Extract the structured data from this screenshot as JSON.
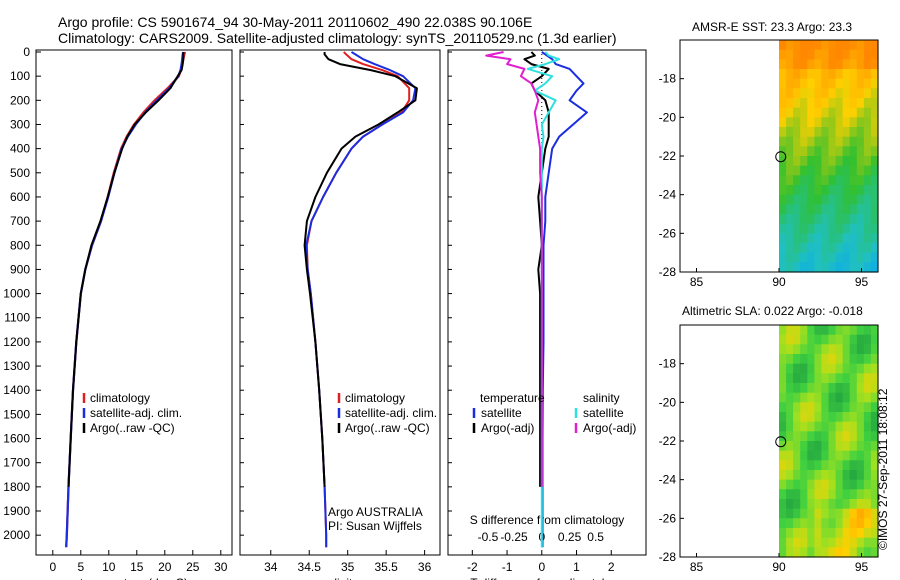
{
  "header": {
    "line1": "Argo profile: CS 5901674_94 30-May-2011 20110602_490 22.038S 90.106E",
    "line2": "Climatology: CARS2009. Satellite-adjusted climatology: synTS_20110529.nc (1.3d earlier)"
  },
  "timestamp": "©IMOS 27-Sep-2011 18:08:12",
  "colors": {
    "climatology": "#e02020",
    "satellite": "#1a2ee0",
    "argo": "#000000",
    "salinity_sat": "#2ee0e0",
    "salinity_argo": "#e020d0"
  },
  "chart_data": [
    {
      "type": "line",
      "name": "temperature",
      "xlabel": "temperature (deg C)",
      "ylabel": "",
      "xlim": [
        -3,
        32
      ],
      "ylim": [
        2080,
        0
      ],
      "xticks": [
        "0",
        "5",
        "10",
        "15",
        "20",
        "25",
        "30"
      ],
      "yticks": [
        "0",
        "100",
        "200",
        "300",
        "400",
        "500",
        "600",
        "700",
        "800",
        "900",
        "1000",
        "1100",
        "1200",
        "1300",
        "1400",
        "1500",
        "1600",
        "1700",
        "1800",
        "1900",
        "2000"
      ],
      "legend": {
        "position": "bottom-center",
        "entries": [
          "climatology",
          "satellite-adj. clim.",
          "Argo(..raw -QC)"
        ]
      },
      "depth": [
        0,
        10,
        30,
        50,
        75,
        100,
        150,
        200,
        250,
        300,
        350,
        400,
        500,
        600,
        700,
        800,
        900,
        1000,
        1200,
        1400,
        1600,
        1800,
        2000,
        2050
      ],
      "series": [
        {
          "name": "climatology",
          "values": [
            23.6,
            23.5,
            23.3,
            23.1,
            22.9,
            22.5,
            20.5,
            18.2,
            16.2,
            14.5,
            13.2,
            12.2,
            10.9,
            9.8,
            8.6,
            7.0,
            5.8,
            5.0,
            4.2,
            3.6,
            3.2,
            2.8,
            2.5,
            2.4
          ]
        },
        {
          "name": "satellite-adj. clim.",
          "values": [
            23.3,
            23.2,
            23.1,
            23.0,
            22.8,
            22.4,
            20.8,
            18.6,
            16.5,
            14.8,
            13.4,
            12.3,
            11.0,
            9.9,
            8.6,
            7.0,
            5.8,
            5.0,
            4.2,
            3.6,
            3.2,
            2.8,
            2.5,
            2.4
          ]
        },
        {
          "name": "Argo(..raw -QC)",
          "values": [
            23.3,
            23.3,
            23.3,
            23.2,
            23.0,
            22.3,
            21.0,
            18.9,
            16.6,
            14.6,
            13.3,
            12.4,
            11.0,
            9.8,
            8.5,
            6.9,
            5.8,
            5.0,
            4.2,
            3.6,
            3.2,
            2.8,
            null,
            null
          ]
        }
      ]
    },
    {
      "type": "line",
      "name": "salinity",
      "xlabel": "salinity",
      "xlim": [
        33.6,
        36.2
      ],
      "ylim": [
        2080,
        0
      ],
      "xticks": [
        "34",
        "34.5",
        "35",
        "35.5",
        "36"
      ],
      "legend": {
        "position": "bottom-center",
        "entries": [
          "climatology",
          "satellite-adj. clim.",
          "Argo(..raw -QC)"
        ]
      },
      "annotation": [
        "Argo AUSTRALIA",
        "PI: Susan Wijffels"
      ],
      "depth": [
        0,
        10,
        30,
        50,
        75,
        100,
        150,
        200,
        250,
        300,
        350,
        400,
        500,
        600,
        700,
        800,
        900,
        1000,
        1200,
        1400,
        1600,
        1800,
        2000,
        2050
      ],
      "series": [
        {
          "name": "climatology",
          "values": [
            34.95,
            34.98,
            35.05,
            35.2,
            35.45,
            35.65,
            35.8,
            35.8,
            35.7,
            35.45,
            35.2,
            35.05,
            34.85,
            34.68,
            34.53,
            34.47,
            34.48,
            34.52,
            34.58,
            34.63,
            34.67,
            34.7,
            34.72,
            34.72
          ]
        },
        {
          "name": "satellite-adj. clim.",
          "values": [
            35.05,
            35.1,
            35.2,
            35.35,
            35.55,
            35.72,
            35.88,
            35.85,
            35.72,
            35.45,
            35.2,
            35.05,
            34.85,
            34.68,
            34.53,
            34.46,
            34.48,
            34.52,
            34.58,
            34.63,
            34.67,
            34.7,
            34.72,
            34.72
          ]
        },
        {
          "name": "Argo(..raw -QC)",
          "values": [
            34.7,
            34.7,
            34.75,
            34.9,
            35.3,
            35.62,
            35.9,
            35.88,
            35.65,
            35.4,
            35.1,
            34.92,
            34.73,
            34.58,
            34.47,
            34.44,
            34.47,
            34.51,
            34.58,
            34.63,
            34.67,
            34.7,
            null,
            null
          ]
        }
      ]
    },
    {
      "type": "line",
      "name": "difference",
      "xlabel": "T difference from climatology",
      "top_xlabel": "S difference from climatology",
      "xlim": [
        -2.7,
        3.0
      ],
      "ylim": [
        2080,
        0
      ],
      "xticks": [
        "-2",
        "-1",
        "0",
        "1",
        "2"
      ],
      "top_xticks": [
        "-0.5",
        "-0.25",
        "0",
        "0.25",
        "0.5"
      ],
      "legend": {
        "position": "bottom-center",
        "groups": [
          "temperature",
          "salinity"
        ],
        "entries": [
          "satellite",
          "Argo(-adj)",
          "satellite",
          "Argo(-adj)"
        ]
      },
      "depth": [
        0,
        15,
        30,
        50,
        70,
        100,
        130,
        160,
        200,
        250,
        300,
        350,
        400,
        500,
        600,
        700,
        800,
        900,
        1000,
        1200,
        1400,
        1600,
        1800,
        2000,
        2050
      ],
      "series": [
        {
          "name": "temperature satellite",
          "values": [
            0.0,
            0.15,
            0.3,
            0.4,
            0.8,
            1.0,
            1.2,
            1.0,
            0.8,
            1.3,
            0.9,
            0.5,
            0.3,
            0.2,
            0.1,
            0.1,
            0.05,
            0.05,
            0.05,
            0.05,
            0.03,
            0.02,
            0.02,
            0.02,
            0.02
          ]
        },
        {
          "name": "temperature Argo(-adj)",
          "values": [
            -0.3,
            -0.2,
            -0.5,
            -0.3,
            0.2,
            0.0,
            -0.3,
            -0.2,
            0.1,
            0.2,
            0.2,
            0.2,
            0.1,
            0.0,
            -0.1,
            -0.05,
            0.0,
            -0.1,
            -0.05,
            -0.05,
            -0.05,
            -0.05,
            -0.05,
            null,
            null
          ]
        },
        {
          "name": "salinity satellite",
          "values": [
            0.1,
            0.2,
            0.5,
            0.1,
            -0.4,
            0.3,
            0.1,
            -0.2,
            0.4,
            0.2,
            0.0,
            0.05,
            0.0,
            0.0,
            0.0,
            0.0,
            0.0,
            0.0,
            0.0,
            0.0,
            0.0,
            0.0,
            0.0,
            0.0,
            0.0
          ]
        },
        {
          "name": "salinity Argo(-adj)",
          "values": [
            -1.1,
            -1.6,
            -0.9,
            -1.0,
            -0.5,
            -0.6,
            -0.3,
            -0.2,
            -0.1,
            -0.2,
            -0.15,
            -0.1,
            -0.05,
            -0.05,
            0.0,
            0.0,
            0.0,
            0.0,
            0.0,
            0.0,
            0.0,
            0.0,
            0.0,
            null,
            null
          ]
        }
      ]
    },
    {
      "type": "heatmap",
      "name": "amsre-sst",
      "title": "AMSR-E SST: 23.3 Argo: 23.3",
      "xlim": [
        84,
        96
      ],
      "ylim": [
        -28,
        -16
      ],
      "xticks": [
        "85",
        "90",
        "95"
      ],
      "yticks": [
        "-18",
        "-20",
        "-22",
        "-24",
        "-26",
        "-28"
      ],
      "marker": {
        "lon": 90.106,
        "lat": -22.038
      },
      "colorscale": [
        "#ff8800",
        "#ffd000",
        "#30c030",
        "#20c0c0",
        "#00a0ff"
      ]
    },
    {
      "type": "heatmap",
      "name": "altimetric-sla",
      "title": "Altimetric SLA: 0.022 Argo: -0.018",
      "xlim": [
        84,
        96
      ],
      "ylim": [
        -28,
        -16
      ],
      "xticks": [
        "85",
        "90",
        "95"
      ],
      "yticks": [
        "-18",
        "-20",
        "-22",
        "-24",
        "-26",
        "-28"
      ],
      "marker": {
        "lon": 90.106,
        "lat": -22.038
      },
      "colorscale": [
        "#20a040",
        "#40d040",
        "#a0e020",
        "#ffd000",
        "#ff8800"
      ]
    }
  ]
}
